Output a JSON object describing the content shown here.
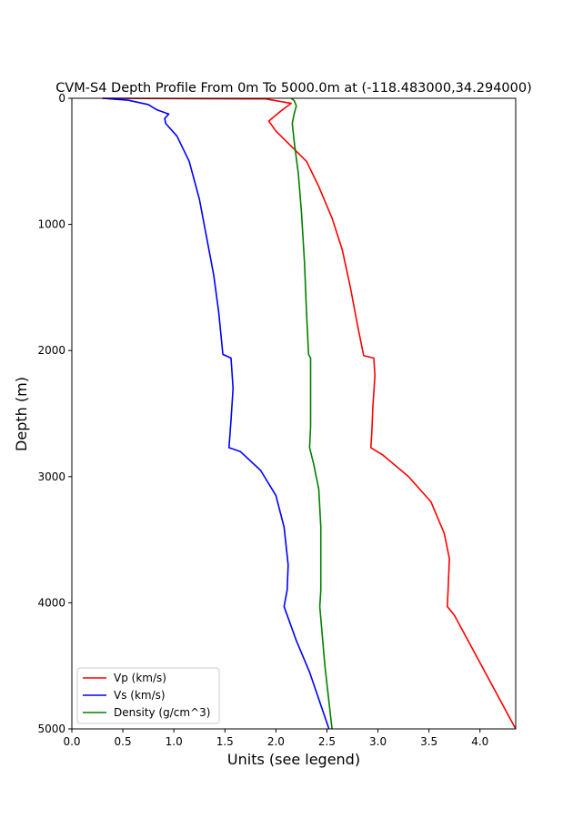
{
  "chart_data": {
    "type": "line",
    "title": "CVM-S4 Depth Profile From 0m To 5000.0m at (-118.483000,34.294000)",
    "xlabel": "Units (see legend)",
    "ylabel": "Depth (m)",
    "xlim": [
      0.0,
      4.35
    ],
    "ylim": [
      5000,
      0
    ],
    "y_inverted": true,
    "x_ticks": [
      "0.0",
      "0.5",
      "1.0",
      "1.5",
      "2.0",
      "2.5",
      "3.0",
      "3.5",
      "4.0"
    ],
    "x_tick_values": [
      0.0,
      0.5,
      1.0,
      1.5,
      2.0,
      2.5,
      3.0,
      3.5,
      4.0
    ],
    "y_ticks": [
      "0",
      "1000",
      "2000",
      "3000",
      "4000",
      "5000"
    ],
    "y_tick_values": [
      0,
      1000,
      2000,
      3000,
      4000,
      5000
    ],
    "grid": false,
    "legend_position": "lower-left",
    "series": [
      {
        "name": "Vp (km/s)",
        "color": "#ff0000",
        "points": [
          [
            0.3,
            0
          ],
          [
            1.9,
            5
          ],
          [
            2.15,
            40
          ],
          [
            2.05,
            100
          ],
          [
            1.93,
            180
          ],
          [
            2.0,
            260
          ],
          [
            2.15,
            380
          ],
          [
            2.3,
            500
          ],
          [
            2.42,
            700
          ],
          [
            2.55,
            950
          ],
          [
            2.65,
            1200
          ],
          [
            2.73,
            1500
          ],
          [
            2.8,
            1800
          ],
          [
            2.86,
            2040
          ],
          [
            2.96,
            2060
          ],
          [
            2.97,
            2200
          ],
          [
            2.95,
            2450
          ],
          [
            2.94,
            2650
          ],
          [
            2.93,
            2770
          ],
          [
            3.05,
            2830
          ],
          [
            3.3,
            3000
          ],
          [
            3.52,
            3200
          ],
          [
            3.65,
            3450
          ],
          [
            3.7,
            3650
          ],
          [
            3.69,
            3850
          ],
          [
            3.68,
            4030
          ],
          [
            3.75,
            4100
          ],
          [
            4.35,
            5000
          ]
        ]
      },
      {
        "name": "Vs (km/s)",
        "color": "#0000ff",
        "points": [
          [
            0.3,
            0
          ],
          [
            0.55,
            15
          ],
          [
            0.75,
            50
          ],
          [
            0.83,
            90
          ],
          [
            0.95,
            125
          ],
          [
            0.91,
            160
          ],
          [
            0.92,
            200
          ],
          [
            1.03,
            300
          ],
          [
            1.15,
            500
          ],
          [
            1.25,
            800
          ],
          [
            1.32,
            1100
          ],
          [
            1.39,
            1400
          ],
          [
            1.44,
            1700
          ],
          [
            1.48,
            2030
          ],
          [
            1.56,
            2060
          ],
          [
            1.58,
            2300
          ],
          [
            1.56,
            2550
          ],
          [
            1.54,
            2770
          ],
          [
            1.65,
            2800
          ],
          [
            1.85,
            2950
          ],
          [
            2.0,
            3150
          ],
          [
            2.08,
            3400
          ],
          [
            2.12,
            3700
          ],
          [
            2.11,
            3900
          ],
          [
            2.08,
            4030
          ],
          [
            2.2,
            4300
          ],
          [
            2.33,
            4550
          ],
          [
            2.52,
            5000
          ]
        ]
      },
      {
        "name": "Density (g/cm^3)",
        "color": "#008000",
        "points": [
          [
            2.15,
            0
          ],
          [
            2.18,
            20
          ],
          [
            2.2,
            60
          ],
          [
            2.18,
            120
          ],
          [
            2.16,
            200
          ],
          [
            2.18,
            350
          ],
          [
            2.22,
            600
          ],
          [
            2.25,
            900
          ],
          [
            2.28,
            1300
          ],
          [
            2.3,
            1700
          ],
          [
            2.32,
            2030
          ],
          [
            2.34,
            2060
          ],
          [
            2.34,
            2400
          ],
          [
            2.34,
            2600
          ],
          [
            2.33,
            2770
          ],
          [
            2.37,
            2900
          ],
          [
            2.42,
            3100
          ],
          [
            2.44,
            3400
          ],
          [
            2.44,
            3700
          ],
          [
            2.44,
            3900
          ],
          [
            2.43,
            4030
          ],
          [
            2.48,
            4500
          ],
          [
            2.55,
            5000
          ]
        ]
      }
    ]
  }
}
